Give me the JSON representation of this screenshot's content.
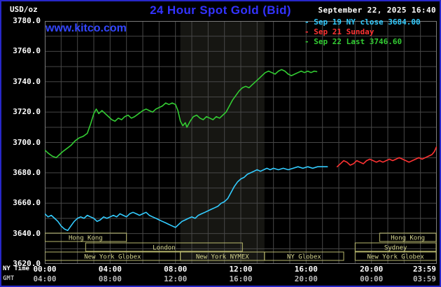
{
  "header": {
    "unit_label": "USD/oz",
    "title": "24 Hour Spot Gold (Bid)",
    "datetime": "September 22, 2025 16:40",
    "watermark": "www.kitco.com"
  },
  "legend": [
    {
      "marker": "- ",
      "label": "Sep 19 NY close 3684.00",
      "color": "#33ccff"
    },
    {
      "marker": "- ",
      "label": "Sep 21 Sunday",
      "color": "#ff3333"
    },
    {
      "marker": "- ",
      "label": "Sep 22 Last 3746.60",
      "color": "#33cc33"
    }
  ],
  "colors": {
    "background": "#000000",
    "frame": "#2727c9",
    "grid": "#474747",
    "plot_border": "#7a7a7a",
    "band": "rgba(220,220,180,0.10)",
    "session_box": "#b9b96e",
    "session_text": "#d8d890"
  },
  "chart_data": {
    "type": "line",
    "title": "24 Hour Spot Gold (Bid)",
    "ylabel": "USD/oz",
    "xlabel": "NY Time",
    "gmt_label": "GMT",
    "grid": true,
    "ylim": [
      3620,
      3780
    ],
    "y_tick_step": 10,
    "x_range_hours": [
      0,
      24
    ],
    "y_ticks": [
      "3780.0",
      "3760.0",
      "3740.0",
      "3720.0",
      "3700.0",
      "3680.0",
      "3660.0",
      "3640.0",
      "3620.0"
    ],
    "ny_ticks": [
      "00:00",
      "04:00",
      "08:00",
      "12:00",
      "16:00",
      "20:00",
      "23:59"
    ],
    "gmt_ticks": [
      "04:00",
      "08:00",
      "12:00",
      "16:00",
      "20:00",
      "00:00",
      "03:59"
    ],
    "tick_hours": [
      0,
      4,
      8,
      12,
      16,
      20,
      23.983
    ],
    "nymex_band_hours": [
      8.3,
      13.45
    ],
    "series": [
      {
        "id": "sep19",
        "name": "Sep 19 NY close 3684.00",
        "color": "#33ccff",
        "points": [
          [
            0,
            3653
          ],
          [
            0.2,
            3651
          ],
          [
            0.4,
            3652
          ],
          [
            0.6,
            3650
          ],
          [
            0.8,
            3648
          ],
          [
            1.0,
            3645
          ],
          [
            1.2,
            3643
          ],
          [
            1.4,
            3642
          ],
          [
            1.6,
            3645
          ],
          [
            1.8,
            3648
          ],
          [
            2.0,
            3650
          ],
          [
            2.2,
            3651
          ],
          [
            2.4,
            3650
          ],
          [
            2.6,
            3652
          ],
          [
            2.8,
            3651
          ],
          [
            3.0,
            3650
          ],
          [
            3.2,
            3648
          ],
          [
            3.4,
            3649
          ],
          [
            3.6,
            3651
          ],
          [
            3.8,
            3650
          ],
          [
            4.0,
            3651
          ],
          [
            4.2,
            3652
          ],
          [
            4.4,
            3651
          ],
          [
            4.6,
            3653
          ],
          [
            4.8,
            3652
          ],
          [
            5.0,
            3651
          ],
          [
            5.2,
            3653
          ],
          [
            5.4,
            3654
          ],
          [
            5.6,
            3653
          ],
          [
            5.8,
            3652
          ],
          [
            6.0,
            3653
          ],
          [
            6.2,
            3654
          ],
          [
            6.4,
            3652
          ],
          [
            6.6,
            3651
          ],
          [
            6.8,
            3650
          ],
          [
            7.0,
            3649
          ],
          [
            7.2,
            3648
          ],
          [
            7.4,
            3647
          ],
          [
            7.6,
            3646
          ],
          [
            7.8,
            3645
          ],
          [
            8.0,
            3644
          ],
          [
            8.2,
            3646
          ],
          [
            8.4,
            3648
          ],
          [
            8.6,
            3649
          ],
          [
            8.8,
            3650
          ],
          [
            9.0,
            3651
          ],
          [
            9.2,
            3650
          ],
          [
            9.4,
            3652
          ],
          [
            9.6,
            3653
          ],
          [
            9.8,
            3654
          ],
          [
            10.0,
            3655
          ],
          [
            10.2,
            3656
          ],
          [
            10.4,
            3657
          ],
          [
            10.6,
            3658
          ],
          [
            10.8,
            3660
          ],
          [
            11.0,
            3661
          ],
          [
            11.2,
            3663
          ],
          [
            11.4,
            3667
          ],
          [
            11.6,
            3671
          ],
          [
            11.8,
            3674
          ],
          [
            12.0,
            3676
          ],
          [
            12.2,
            3677
          ],
          [
            12.4,
            3679
          ],
          [
            12.6,
            3680
          ],
          [
            12.8,
            3681
          ],
          [
            13.0,
            3682
          ],
          [
            13.2,
            3681
          ],
          [
            13.4,
            3682
          ],
          [
            13.6,
            3683
          ],
          [
            13.8,
            3682
          ],
          [
            14.0,
            3683
          ],
          [
            14.3,
            3682
          ],
          [
            14.6,
            3683
          ],
          [
            14.9,
            3682
          ],
          [
            15.2,
            3683
          ],
          [
            15.5,
            3684
          ],
          [
            15.8,
            3683
          ],
          [
            16.1,
            3684
          ],
          [
            16.4,
            3683
          ],
          [
            16.7,
            3684
          ],
          [
            17.0,
            3684
          ],
          [
            17.3,
            3684
          ]
        ]
      },
      {
        "id": "sep21",
        "name": "Sep 21 Sunday",
        "color": "#ff3333",
        "points": [
          [
            17.9,
            3684
          ],
          [
            18.1,
            3686
          ],
          [
            18.3,
            3688
          ],
          [
            18.5,
            3687
          ],
          [
            18.7,
            3685
          ],
          [
            18.9,
            3686
          ],
          [
            19.1,
            3688
          ],
          [
            19.3,
            3687
          ],
          [
            19.5,
            3686
          ],
          [
            19.7,
            3688
          ],
          [
            19.9,
            3689
          ],
          [
            20.1,
            3688
          ],
          [
            20.3,
            3687
          ],
          [
            20.5,
            3688
          ],
          [
            20.7,
            3687
          ],
          [
            20.9,
            3688
          ],
          [
            21.1,
            3689
          ],
          [
            21.3,
            3688
          ],
          [
            21.5,
            3689
          ],
          [
            21.7,
            3690
          ],
          [
            21.9,
            3689
          ],
          [
            22.1,
            3688
          ],
          [
            22.3,
            3687
          ],
          [
            22.5,
            3688
          ],
          [
            22.7,
            3689
          ],
          [
            22.9,
            3690
          ],
          [
            23.1,
            3689
          ],
          [
            23.3,
            3690
          ],
          [
            23.5,
            3691
          ],
          [
            23.7,
            3692
          ],
          [
            23.85,
            3694
          ],
          [
            23.98,
            3697
          ]
        ]
      },
      {
        "id": "sep22",
        "name": "Sep 22 Last 3746.60",
        "color": "#33cc33",
        "points": [
          [
            0,
            3695
          ],
          [
            0.2,
            3693
          ],
          [
            0.45,
            3691
          ],
          [
            0.7,
            3690
          ],
          [
            0.9,
            3692
          ],
          [
            1.1,
            3694
          ],
          [
            1.35,
            3696
          ],
          [
            1.6,
            3698
          ],
          [
            1.85,
            3701
          ],
          [
            2.1,
            3703
          ],
          [
            2.35,
            3704
          ],
          [
            2.6,
            3706
          ],
          [
            2.8,
            3712
          ],
          [
            3.0,
            3719
          ],
          [
            3.15,
            3722
          ],
          [
            3.3,
            3719
          ],
          [
            3.5,
            3721
          ],
          [
            3.7,
            3719
          ],
          [
            3.9,
            3717
          ],
          [
            4.1,
            3715
          ],
          [
            4.3,
            3714
          ],
          [
            4.5,
            3716
          ],
          [
            4.7,
            3715
          ],
          [
            4.9,
            3717
          ],
          [
            5.1,
            3718
          ],
          [
            5.3,
            3716
          ],
          [
            5.5,
            3717
          ],
          [
            5.75,
            3719
          ],
          [
            6.0,
            3721
          ],
          [
            6.2,
            3722
          ],
          [
            6.4,
            3721
          ],
          [
            6.6,
            3720
          ],
          [
            6.8,
            3722
          ],
          [
            7.0,
            3723
          ],
          [
            7.2,
            3724
          ],
          [
            7.4,
            3726
          ],
          [
            7.6,
            3725
          ],
          [
            7.8,
            3726
          ],
          [
            8.0,
            3725
          ],
          [
            8.15,
            3721
          ],
          [
            8.3,
            3714
          ],
          [
            8.45,
            3711
          ],
          [
            8.6,
            3713
          ],
          [
            8.7,
            3710
          ],
          [
            8.9,
            3714
          ],
          [
            9.1,
            3717
          ],
          [
            9.3,
            3718
          ],
          [
            9.5,
            3716
          ],
          [
            9.7,
            3715
          ],
          [
            9.9,
            3717
          ],
          [
            10.1,
            3716
          ],
          [
            10.3,
            3715
          ],
          [
            10.5,
            3717
          ],
          [
            10.7,
            3716
          ],
          [
            10.9,
            3718
          ],
          [
            11.1,
            3720
          ],
          [
            11.3,
            3724
          ],
          [
            11.5,
            3728
          ],
          [
            11.7,
            3731
          ],
          [
            11.9,
            3734
          ],
          [
            12.1,
            3736
          ],
          [
            12.3,
            3737
          ],
          [
            12.5,
            3736
          ],
          [
            12.7,
            3738
          ],
          [
            12.9,
            3740
          ],
          [
            13.1,
            3742
          ],
          [
            13.3,
            3744
          ],
          [
            13.5,
            3746
          ],
          [
            13.7,
            3747
          ],
          [
            13.9,
            3746
          ],
          [
            14.1,
            3745
          ],
          [
            14.3,
            3747
          ],
          [
            14.5,
            3748
          ],
          [
            14.7,
            3747
          ],
          [
            14.9,
            3745
          ],
          [
            15.1,
            3744
          ],
          [
            15.3,
            3745
          ],
          [
            15.5,
            3746
          ],
          [
            15.7,
            3747
          ],
          [
            15.9,
            3746
          ],
          [
            16.1,
            3747
          ],
          [
            16.3,
            3746
          ],
          [
            16.5,
            3747
          ],
          [
            16.65,
            3746.6
          ]
        ]
      }
    ],
    "sessions": [
      {
        "label": "Hong Kong",
        "row": 0,
        "start": 0,
        "end": 5
      },
      {
        "label": "Hong Kong",
        "row": 0,
        "start": 20.5,
        "end": 24
      },
      {
        "label": "London",
        "row": 1,
        "start": 2.5,
        "end": 12.1
      },
      {
        "label": "Sydney",
        "row": 1,
        "start": 19,
        "end": 24
      },
      {
        "label": "New York Globex",
        "row": 2,
        "start": 0,
        "end": 8.3
      },
      {
        "label": "New York NYMEX",
        "row": 2,
        "start": 8.3,
        "end": 13.45
      },
      {
        "label": "NY Globex",
        "row": 2,
        "start": 13.45,
        "end": 18.3
      },
      {
        "label": "New York Globex",
        "row": 2,
        "start": 19,
        "end": 24
      }
    ]
  }
}
